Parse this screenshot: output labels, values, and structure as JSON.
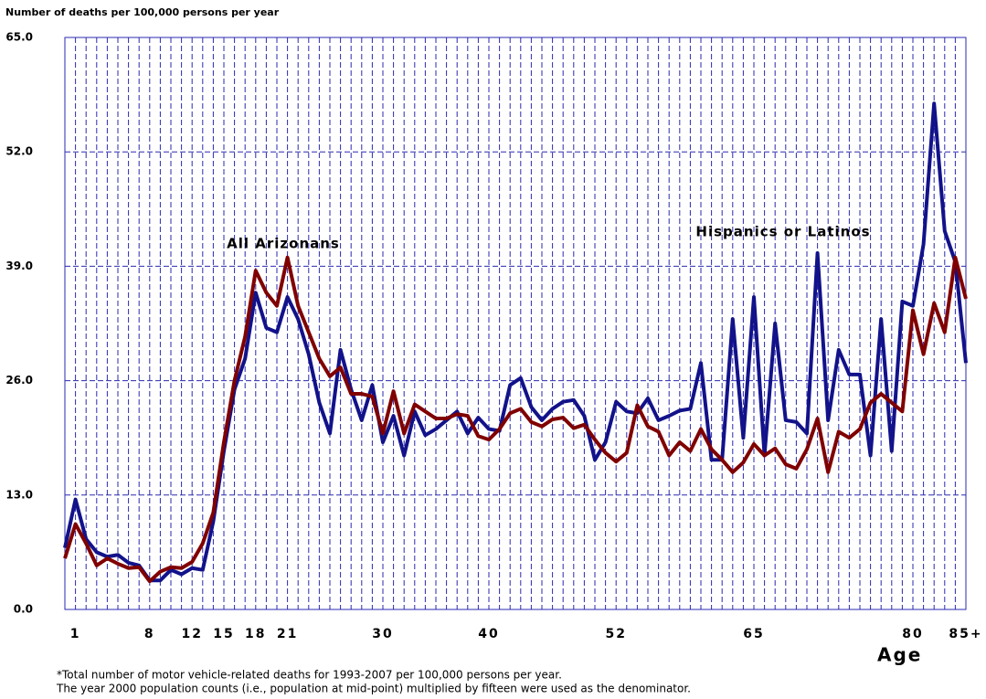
{
  "chart_data": {
    "type": "line",
    "y_label": "Number of deaths per 100,000 persons per year",
    "x_label": "Age",
    "footnotes": [
      "*Total number of motor vehicle-related deaths for 1993-2007 per 100,000 persons per year.",
      "The year 2000 population counts (i.e., population at mid-point) multiplied by fifteen were used as the denominator."
    ],
    "x": [
      0,
      1,
      2,
      3,
      4,
      5,
      6,
      7,
      8,
      9,
      10,
      11,
      12,
      13,
      14,
      15,
      16,
      17,
      18,
      19,
      20,
      21,
      22,
      23,
      24,
      25,
      26,
      27,
      28,
      29,
      30,
      31,
      32,
      33,
      34,
      35,
      36,
      37,
      38,
      39,
      40,
      41,
      42,
      43,
      44,
      45,
      46,
      47,
      48,
      49,
      50,
      51,
      52,
      53,
      54,
      55,
      56,
      57,
      58,
      59,
      60,
      61,
      62,
      63,
      64,
      65,
      66,
      67,
      68,
      69,
      70,
      71,
      72,
      73,
      74,
      75,
      76,
      77,
      78,
      79,
      80,
      81,
      82,
      83,
      84,
      85
    ],
    "xlim": [
      0,
      85
    ],
    "xticks": [
      1,
      8,
      12,
      15,
      18,
      21,
      30,
      40,
      52,
      65,
      80,
      {
        "value": 85,
        "label": "85+"
      }
    ],
    "ylim": [
      0,
      65
    ],
    "yticks": [
      {
        "value": 0,
        "label": "0.0"
      },
      {
        "value": 13,
        "label": "13.0"
      },
      {
        "value": 26,
        "label": "26.0"
      },
      {
        "value": 39,
        "label": "39.0"
      },
      {
        "value": 52,
        "label": "52.0"
      },
      {
        "value": 65,
        "label": "65.0"
      }
    ],
    "grid": true,
    "series": [
      {
        "name": "Hispanics or Latinos",
        "color": "#12128a",
        "values": [
          7,
          12.5,
          8,
          6.5,
          6,
          6.2,
          5.3,
          5,
          3.3,
          3.3,
          4.5,
          4,
          4.7,
          4.5,
          10,
          18,
          25,
          28.5,
          36,
          32,
          31.5,
          35.5,
          33,
          29,
          23.5,
          20,
          29.5,
          25,
          21.5,
          25.5,
          19,
          22,
          17.5,
          22.5,
          19.8,
          20.5,
          21.5,
          22.5,
          20,
          21.8,
          20.5,
          20.3,
          25.5,
          26.3,
          23,
          21.5,
          22.8,
          23.6,
          23.8,
          22,
          17,
          19,
          23.6,
          22.5,
          22.3,
          24,
          21.5,
          22,
          22.6,
          22.8,
          28,
          17,
          17,
          33,
          19.5,
          35.5,
          17.5,
          32.5,
          21.5,
          21.3,
          20,
          40.5,
          21.5,
          29.5,
          26.7,
          26.7,
          17.5,
          33,
          18,
          35,
          34.5,
          41.5,
          57.5,
          43,
          39.5,
          28
        ]
      },
      {
        "name": "All Arizonans",
        "color": "#800000",
        "values": [
          5.8,
          9.7,
          7.5,
          5,
          5.8,
          5.2,
          4.7,
          4.8,
          3.2,
          4.3,
          4.8,
          4.7,
          5.4,
          7.5,
          11,
          19,
          26,
          31,
          38.5,
          36,
          34.5,
          40,
          34.5,
          31.5,
          28.5,
          26.5,
          27.5,
          24.5,
          24.5,
          24.2,
          20,
          24.8,
          20,
          23.3,
          22.5,
          21.7,
          21.7,
          22.2,
          22,
          19.7,
          19.3,
          20.5,
          22.3,
          22.8,
          21.3,
          20.8,
          21.6,
          21.8,
          20.6,
          21,
          19.3,
          17.8,
          16.8,
          17.8,
          23.2,
          20.8,
          20.2,
          17.5,
          19,
          18,
          20.5,
          18.2,
          17,
          15.6,
          16.7,
          18.8,
          17.5,
          18.3,
          16.5,
          16,
          18.2,
          21.7,
          15.6,
          20.2,
          19.5,
          20.5,
          23.5,
          24.5,
          23.5,
          22.5,
          34,
          29,
          34.8,
          31.5,
          40,
          35.3
        ]
      }
    ]
  }
}
